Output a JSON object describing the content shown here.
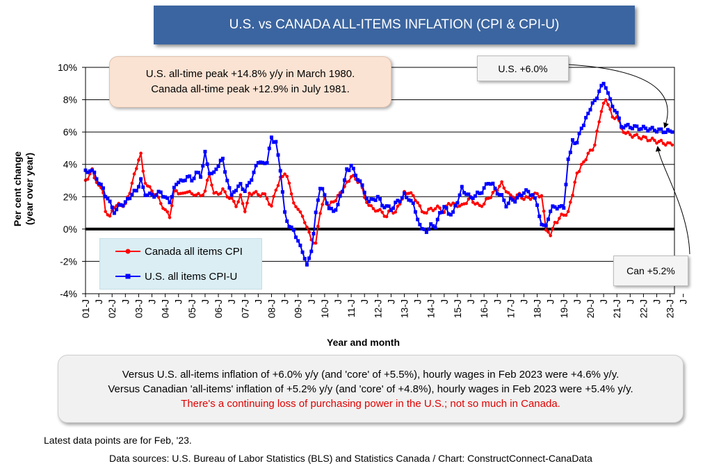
{
  "title": "U.S. vs CANADA ALL-ITEMS INFLATION (CPI & CPI-U)",
  "callouts": {
    "us_latest": "U.S. +6.0%",
    "can_latest": "Can +5.2%",
    "peak_line1": "U.S. all-time peak +14.8% y/y in March 1980.",
    "peak_line2": "Canada all-time peak +12.9% in July 1981."
  },
  "notes": {
    "line1": "Versus U.S. all-items inflation of +6.0% y/y (and 'core' of +5.5%), hourly wages in Feb 2023 were +4.6% y/y.",
    "line2": "Versus Canadian 'all-items' inflation of +5.2% y/y (and 'core' of +4.8%), hourly wages in Feb 2023 were +5.4% y/y.",
    "line3": "There's a continuing loss of purchasing power in the U.S.; not so much in Canada."
  },
  "footer": {
    "latest": "Latest data points are for Feb, '23.",
    "sources": "Data sources: U.S. Bureau of Labor Statistics (BLS) and Statistics Canada / Chart: ConstructConnect-CanaData"
  },
  "chart_data": {
    "type": "line",
    "xlabel": "Year and month",
    "ylabel": "Per cent change\n(year over year)",
    "ylim": [
      -4,
      10
    ],
    "y_ticks": [
      "-4%",
      "-2%",
      "0%",
      "2%",
      "4%",
      "6%",
      "8%",
      "10%"
    ],
    "x_tick_labels": [
      "01-J",
      "J",
      "02-J",
      "J",
      "03-J",
      "J",
      "04-J",
      "J",
      "05-J",
      "J",
      "06-J",
      "J",
      "07-J",
      "J",
      "08-J",
      "J",
      "09-J",
      "J",
      "10-J",
      "J",
      "11-J",
      "J",
      "12-J",
      "J",
      "13-J",
      "J",
      "14-J",
      "J",
      "15-J",
      "J",
      "16-J",
      "J",
      "17-J",
      "J",
      "18-J",
      "J",
      "19-J",
      "J",
      "20-J",
      "J",
      "21-J",
      "J",
      "22-J",
      "J",
      "23-J",
      "J"
    ],
    "grid": "horizontal",
    "legend_position": "lower-left",
    "x_start": "2001-01",
    "x_end": "2023-02",
    "anchor_format": "[months after Jan 2001, per cent]",
    "series": [
      {
        "name": "Canada all items CPI",
        "color": "#ff0000",
        "marker": "circle",
        "anchors": [
          [
            0,
            3.0
          ],
          [
            3,
            3.6
          ],
          [
            6,
            2.6
          ],
          [
            8,
            2.3
          ],
          [
            9,
            1.2
          ],
          [
            11,
            0.7
          ],
          [
            13,
            1.4
          ],
          [
            16,
            1.5
          ],
          [
            18,
            1.5
          ],
          [
            20,
            2.3
          ],
          [
            23,
            3.8
          ],
          [
            25,
            4.6
          ],
          [
            27,
            2.8
          ],
          [
            29,
            2.5
          ],
          [
            32,
            2.1
          ],
          [
            34,
            1.6
          ],
          [
            36,
            1.2
          ],
          [
            38,
            0.7
          ],
          [
            40,
            2.4
          ],
          [
            42,
            2.3
          ],
          [
            44,
            2.1
          ],
          [
            46,
            2.4
          ],
          [
            48,
            2.1
          ],
          [
            50,
            2.2
          ],
          [
            52,
            2.0
          ],
          [
            54,
            2.4
          ],
          [
            56,
            3.4
          ],
          [
            58,
            2.1
          ],
          [
            60,
            2.2
          ],
          [
            62,
            2.4
          ],
          [
            64,
            2.1
          ],
          [
            66,
            1.8
          ],
          [
            68,
            1.5
          ],
          [
            70,
            2.0
          ],
          [
            72,
            1.2
          ],
          [
            74,
            2.1
          ],
          [
            76,
            2.3
          ],
          [
            78,
            2.1
          ],
          [
            80,
            2.2
          ],
          [
            82,
            1.9
          ],
          [
            84,
            1.4
          ],
          [
            86,
            2.4
          ],
          [
            88,
            3.1
          ],
          [
            90,
            3.5
          ],
          [
            92,
            2.8
          ],
          [
            94,
            1.7
          ],
          [
            96,
            1.1
          ],
          [
            98,
            0.9
          ],
          [
            100,
            0.0
          ],
          [
            102,
            -0.6
          ],
          [
            104,
            -0.9
          ],
          [
            106,
            1.0
          ],
          [
            108,
            1.9
          ],
          [
            110,
            1.4
          ],
          [
            112,
            1.7
          ],
          [
            114,
            2.0
          ],
          [
            116,
            2.4
          ],
          [
            118,
            2.8
          ],
          [
            120,
            3.3
          ],
          [
            122,
            3.1
          ],
          [
            124,
            2.9
          ],
          [
            126,
            2.0
          ],
          [
            128,
            1.5
          ],
          [
            130,
            1.2
          ],
          [
            132,
            1.2
          ],
          [
            134,
            1.0
          ],
          [
            136,
            0.8
          ],
          [
            138,
            1.2
          ],
          [
            140,
            1.0
          ],
          [
            142,
            1.6
          ],
          [
            144,
            2.2
          ],
          [
            146,
            2.3
          ],
          [
            148,
            2.0
          ],
          [
            150,
            1.7
          ],
          [
            152,
            1.0
          ],
          [
            154,
            1.1
          ],
          [
            156,
            1.2
          ],
          [
            158,
            1.3
          ],
          [
            160,
            1.3
          ],
          [
            162,
            1.0
          ],
          [
            164,
            1.6
          ],
          [
            166,
            1.5
          ],
          [
            168,
            1.5
          ],
          [
            170,
            1.4
          ],
          [
            172,
            1.7
          ],
          [
            174,
            1.9
          ],
          [
            176,
            1.6
          ],
          [
            178,
            1.4
          ],
          [
            180,
            1.6
          ],
          [
            182,
            1.9
          ],
          [
            184,
            2.2
          ],
          [
            186,
            2.5
          ],
          [
            188,
            2.8
          ],
          [
            190,
            2.4
          ],
          [
            192,
            2.0
          ],
          [
            194,
            2.0
          ],
          [
            196,
            2.1
          ],
          [
            198,
            1.9
          ],
          [
            200,
            1.9
          ],
          [
            202,
            2.0
          ],
          [
            204,
            2.2
          ],
          [
            206,
            2.0
          ],
          [
            208,
            0.0
          ],
          [
            210,
            -0.3
          ],
          [
            212,
            0.3
          ],
          [
            214,
            0.7
          ],
          [
            216,
            0.9
          ],
          [
            218,
            1.0
          ],
          [
            220,
            2.2
          ],
          [
            222,
            3.4
          ],
          [
            224,
            3.9
          ],
          [
            226,
            4.4
          ],
          [
            228,
            4.8
          ],
          [
            230,
            5.2
          ],
          [
            232,
            6.7
          ],
          [
            234,
            7.7
          ],
          [
            235,
            8.1
          ],
          [
            236,
            7.6
          ],
          [
            238,
            7.0
          ],
          [
            240,
            6.9
          ],
          [
            242,
            6.3
          ],
          [
            244,
            5.9
          ],
          [
            265,
            5.2
          ]
        ]
      },
      {
        "name": "U.S. all items CPI-U",
        "color": "#0000ff",
        "marker": "square",
        "anchors": [
          [
            0,
            3.7
          ],
          [
            2,
            3.5
          ],
          [
            4,
            3.6
          ],
          [
            6,
            2.7
          ],
          [
            8,
            2.6
          ],
          [
            9,
            2.1
          ],
          [
            11,
            1.6
          ],
          [
            13,
            1.1
          ],
          [
            16,
            1.5
          ],
          [
            18,
            1.6
          ],
          [
            20,
            2.0
          ],
          [
            23,
            2.4
          ],
          [
            25,
            3.0
          ],
          [
            27,
            2.2
          ],
          [
            29,
            2.1
          ],
          [
            32,
            2.1
          ],
          [
            34,
            2.3
          ],
          [
            36,
            1.9
          ],
          [
            38,
            1.7
          ],
          [
            40,
            2.5
          ],
          [
            42,
            3.0
          ],
          [
            44,
            2.9
          ],
          [
            46,
            3.3
          ],
          [
            48,
            3.0
          ],
          [
            50,
            3.5
          ],
          [
            52,
            3.3
          ],
          [
            54,
            4.7
          ],
          [
            56,
            3.5
          ],
          [
            58,
            3.4
          ],
          [
            60,
            4.0
          ],
          [
            62,
            4.3
          ],
          [
            64,
            3.0
          ],
          [
            66,
            2.0
          ],
          [
            68,
            2.5
          ],
          [
            70,
            2.7
          ],
          [
            72,
            2.4
          ],
          [
            74,
            2.8
          ],
          [
            76,
            3.5
          ],
          [
            78,
            4.2
          ],
          [
            80,
            4.0
          ],
          [
            82,
            4.2
          ],
          [
            84,
            5.6
          ],
          [
            86,
            5.3
          ],
          [
            88,
            3.7
          ],
          [
            90,
            1.1
          ],
          [
            92,
            0.1
          ],
          [
            94,
            -0.1
          ],
          [
            96,
            -0.7
          ],
          [
            98,
            -1.5
          ],
          [
            100,
            -2.1
          ],
          [
            102,
            -1.5
          ],
          [
            104,
            1.1
          ],
          [
            106,
            2.6
          ],
          [
            108,
            2.2
          ],
          [
            110,
            1.2
          ],
          [
            112,
            1.1
          ],
          [
            114,
            1.5
          ],
          [
            116,
            2.4
          ],
          [
            118,
            3.6
          ],
          [
            120,
            3.9
          ],
          [
            122,
            3.4
          ],
          [
            124,
            2.9
          ],
          [
            126,
            2.3
          ],
          [
            128,
            1.7
          ],
          [
            130,
            1.8
          ],
          [
            132,
            2.0
          ],
          [
            134,
            1.5
          ],
          [
            136,
            1.4
          ],
          [
            138,
            1.2
          ],
          [
            140,
            1.6
          ],
          [
            142,
            1.8
          ],
          [
            144,
            2.1
          ],
          [
            146,
            1.9
          ],
          [
            148,
            1.5
          ],
          [
            150,
            0.7
          ],
          [
            152,
            -0.1
          ],
          [
            154,
            -0.1
          ],
          [
            156,
            0.2
          ],
          [
            158,
            0.2
          ],
          [
            160,
            0.9
          ],
          [
            162,
            1.4
          ],
          [
            164,
            1.0
          ],
          [
            166,
            1.0
          ],
          [
            168,
            1.7
          ],
          [
            170,
            2.5
          ],
          [
            172,
            2.2
          ],
          [
            174,
            1.9
          ],
          [
            176,
            2.1
          ],
          [
            178,
            2.2
          ],
          [
            180,
            2.5
          ],
          [
            182,
            2.9
          ],
          [
            184,
            2.7
          ],
          [
            186,
            2.3
          ],
          [
            188,
            2.0
          ],
          [
            190,
            1.5
          ],
          [
            192,
            1.8
          ],
          [
            194,
            1.8
          ],
          [
            196,
            2.0
          ],
          [
            198,
            2.3
          ],
          [
            200,
            2.3
          ],
          [
            202,
            2.1
          ],
          [
            204,
            1.5
          ],
          [
            206,
            0.3
          ],
          [
            208,
            0.1
          ],
          [
            210,
            1.2
          ],
          [
            212,
            1.4
          ],
          [
            214,
            1.3
          ],
          [
            216,
            1.4
          ],
          [
            218,
            4.2
          ],
          [
            220,
            5.4
          ],
          [
            222,
            5.4
          ],
          [
            224,
            6.2
          ],
          [
            226,
            6.8
          ],
          [
            228,
            7.5
          ],
          [
            230,
            7.9
          ],
          [
            232,
            8.5
          ],
          [
            234,
            9.1
          ],
          [
            236,
            8.3
          ],
          [
            238,
            7.7
          ],
          [
            240,
            7.1
          ],
          [
            242,
            6.4
          ],
          [
            265,
            6.0
          ]
        ]
      }
    ]
  }
}
